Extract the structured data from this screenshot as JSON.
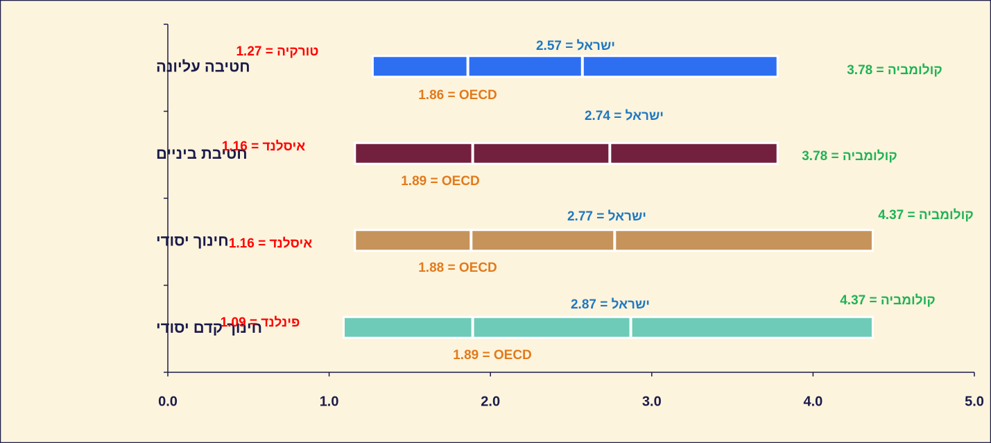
{
  "chart_data": {
    "type": "range_bar",
    "categories": [
      "חטיבה עליונה",
      "חטיבת ביניים",
      "חינוך יסודי",
      "חינוך קדם יסודי"
    ],
    "bar_colors": [
      "#2e6ff2",
      "#73203f",
      "#c6935b",
      "#6dcbb7"
    ],
    "series": [
      {
        "color": "#ff0000",
        "values": [
          1.27,
          1.16,
          1.16,
          1.09
        ],
        "value_labels": [
          "טורקיה = 1.27",
          "איסלנד = 1.16",
          "איסלנד = 1.16",
          "פינלנד = 1.09"
        ]
      },
      {
        "color": "#e27a1c",
        "values": [
          1.86,
          1.89,
          1.88,
          1.89
        ],
        "value_labels": [
          "1.86  = OECD",
          "1.89 = OECD",
          "1.88 = OECD",
          "1.89 = OECD"
        ]
      },
      {
        "color": "#1f78c1",
        "values": [
          2.57,
          2.74,
          2.77,
          2.87
        ],
        "value_labels": [
          "ישראל = 2.57",
          "ישראל = 2.74",
          "ישראל = 2.77",
          "ישראל = 2.87"
        ]
      },
      {
        "color": "#1fb356",
        "values": [
          3.78,
          3.78,
          4.37,
          4.37
        ],
        "value_labels": [
          "קולומביה = 3.78",
          "קולומביה = 3.78",
          "קולומביה = 4.37",
          "קולומביה = 4.37"
        ]
      }
    ],
    "xlim": [
      0,
      5
    ],
    "xticks": [
      {
        "value": 0,
        "label": "0.0"
      },
      {
        "value": 1,
        "label": "1.0"
      },
      {
        "value": 2,
        "label": "2.0"
      },
      {
        "value": 3,
        "label": "3.0"
      },
      {
        "value": 4,
        "label": "4.0"
      },
      {
        "value": 5,
        "label": "5.0"
      }
    ]
  }
}
